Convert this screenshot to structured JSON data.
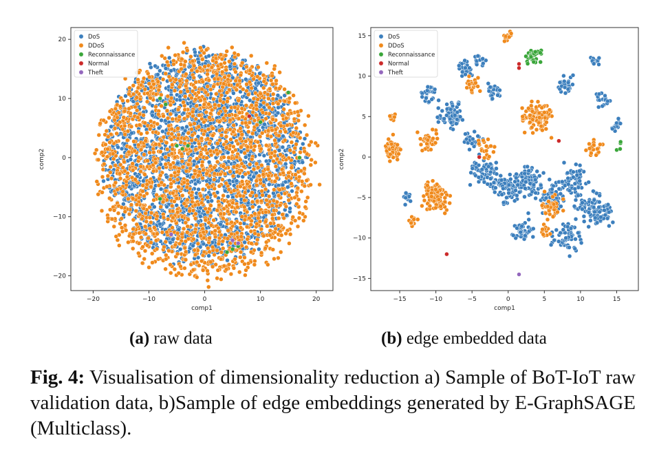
{
  "colors": {
    "DoS": "#3c7fbd",
    "DDoS": "#f08a1c",
    "Reconnaissance": "#3aa63a",
    "Normal": "#cc2a2a",
    "Theft": "#9467bd"
  },
  "chart_data": [
    {
      "id": "a",
      "type": "scatter",
      "xlabel": "comp1",
      "ylabel": "comp2",
      "xlim": [
        -24,
        23
      ],
      "ylim": [
        -22.5,
        22
      ],
      "xticks": [
        -20,
        -10,
        0,
        10,
        20
      ],
      "yticks": [
        -20,
        -10,
        0,
        10,
        20
      ],
      "legend_position": "top-left",
      "legend": [
        "DoS",
        "DDoS",
        "Reconnaissance",
        "Normal",
        "Theft"
      ],
      "series": [
        {
          "name": "DoS",
          "shape": "disc",
          "center": [
            0,
            0
          ],
          "radius": 19,
          "count": 2300
        },
        {
          "name": "DDoS",
          "shape": "disc",
          "center": [
            0,
            -1
          ],
          "radius": 21,
          "count": 2000
        },
        {
          "name": "Reconnaissance",
          "points": [
            [
              -8,
              10
            ],
            [
              -7,
              9
            ],
            [
              -5,
              2
            ],
            [
              -4,
              1.5
            ],
            [
              -3,
              2
            ],
            [
              -8,
              -7
            ],
            [
              5,
              -15.5
            ],
            [
              4,
              -16
            ],
            [
              6,
              -15
            ],
            [
              17,
              0
            ],
            [
              15,
              11
            ],
            [
              10,
              6
            ]
          ]
        },
        {
          "name": "Normal",
          "points": [
            [
              8,
              7
            ]
          ]
        },
        {
          "name": "Theft",
          "points": [
            [
              -6,
              -13
            ],
            [
              5,
              -14
            ],
            [
              6,
              -14.5
            ]
          ]
        }
      ],
      "panel_label": "(a)",
      "panel_text": "raw data"
    },
    {
      "id": "b",
      "type": "scatter",
      "xlabel": "comp1",
      "ylabel": "comp2",
      "xlim": [
        -19,
        18
      ],
      "ylim": [
        -16.5,
        16
      ],
      "xticks": [
        -15,
        -10,
        -5,
        0,
        5,
        10,
        15
      ],
      "yticks": [
        -15,
        -10,
        -5,
        0,
        5,
        10,
        15
      ],
      "legend_position": "top-left",
      "legend": [
        "DoS",
        "DDoS",
        "Reconnaissance",
        "Normal",
        "Theft"
      ],
      "series": [
        {
          "name": "DoS",
          "clusters": [
            {
              "center": [
                -6,
                11
              ],
              "radius": 0.8,
              "count": 25
            },
            {
              "center": [
                -11,
                8
              ],
              "radius": 0.9,
              "count": 25
            },
            {
              "center": [
                -8,
                5
              ],
              "radius": 1.6,
              "count": 60
            },
            {
              "center": [
                -5,
                2
              ],
              "radius": 1,
              "count": 25
            },
            {
              "center": [
                -3,
                -2
              ],
              "radius": 1.6,
              "count": 70
            },
            {
              "center": [
                0,
                -4
              ],
              "radius": 1.6,
              "count": 70
            },
            {
              "center": [
                3,
                -3
              ],
              "radius": 1.6,
              "count": 70
            },
            {
              "center": [
                6,
                -5
              ],
              "radius": 1.6,
              "count": 70
            },
            {
              "center": [
                9,
                -3
              ],
              "radius": 1.4,
              "count": 55
            },
            {
              "center": [
                11,
                -6
              ],
              "radius": 1.3,
              "count": 50
            },
            {
              "center": [
                13,
                -7
              ],
              "radius": 1.3,
              "count": 50
            },
            {
              "center": [
                8,
                -10
              ],
              "radius": 1.5,
              "count": 55
            },
            {
              "center": [
                2,
                -9
              ],
              "radius": 1.2,
              "count": 40
            },
            {
              "center": [
                -4,
                12
              ],
              "radius": 0.6,
              "count": 15
            },
            {
              "center": [
                8,
                9
              ],
              "radius": 1,
              "count": 25
            },
            {
              "center": [
                13,
                7
              ],
              "radius": 0.9,
              "count": 20
            },
            {
              "center": [
                -14,
                -5
              ],
              "radius": 0.6,
              "count": 12
            },
            {
              "center": [
                12,
                12
              ],
              "radius": 0.5,
              "count": 10
            },
            {
              "center": [
                -2,
                8
              ],
              "radius": 0.8,
              "count": 20
            },
            {
              "center": [
                15,
                4
              ],
              "radius": 0.7,
              "count": 15
            }
          ]
        },
        {
          "name": "DDoS",
          "clusters": [
            {
              "center": [
                4,
                5
              ],
              "radius": 1.6,
              "count": 110
            },
            {
              "center": [
                -10,
                -5
              ],
              "radius": 1.4,
              "count": 90
            },
            {
              "center": [
                -16,
                1
              ],
              "radius": 1.1,
              "count": 45
            },
            {
              "center": [
                -11,
                2
              ],
              "radius": 1,
              "count": 35
            },
            {
              "center": [
                -5,
                9
              ],
              "radius": 0.8,
              "count": 20
            },
            {
              "center": [
                0,
                15
              ],
              "radius": 0.6,
              "count": 15
            },
            {
              "center": [
                6,
                -6
              ],
              "radius": 1.2,
              "count": 40
            },
            {
              "center": [
                12,
                1
              ],
              "radius": 0.9,
              "count": 25
            },
            {
              "center": [
                -13,
                -8
              ],
              "radius": 0.6,
              "count": 12
            },
            {
              "center": [
                -3,
                1
              ],
              "radius": 0.9,
              "count": 20
            },
            {
              "center": [
                -16,
                5
              ],
              "radius": 0.5,
              "count": 10
            },
            {
              "center": [
                5,
                -9
              ],
              "radius": 0.6,
              "count": 12
            }
          ]
        },
        {
          "name": "Reconnaissance",
          "clusters": [
            {
              "center": [
                3.5,
                12.5
              ],
              "radius": 0.9,
              "count": 35
            },
            {
              "center": [
                15.5,
                1.5
              ],
              "radius": 0.4,
              "count": 4
            }
          ]
        },
        {
          "name": "Normal",
          "points": [
            [
              1.5,
              11.5
            ],
            [
              1.5,
              11
            ],
            [
              -4,
              0
            ],
            [
              -8.5,
              -12
            ],
            [
              7,
              2
            ]
          ]
        },
        {
          "name": "Theft",
          "points": [
            [
              1.5,
              -14.5
            ]
          ]
        }
      ],
      "panel_label": "(b)",
      "panel_text": "edge embedded data"
    }
  ],
  "caption": {
    "label": "Fig. 4:",
    "text": " Visualisation of dimensionality reduction a) Sample of BoT-IoT raw validation data, b)Sample of edge embeddings generated by E-GraphSAGE (Multiclass)."
  }
}
